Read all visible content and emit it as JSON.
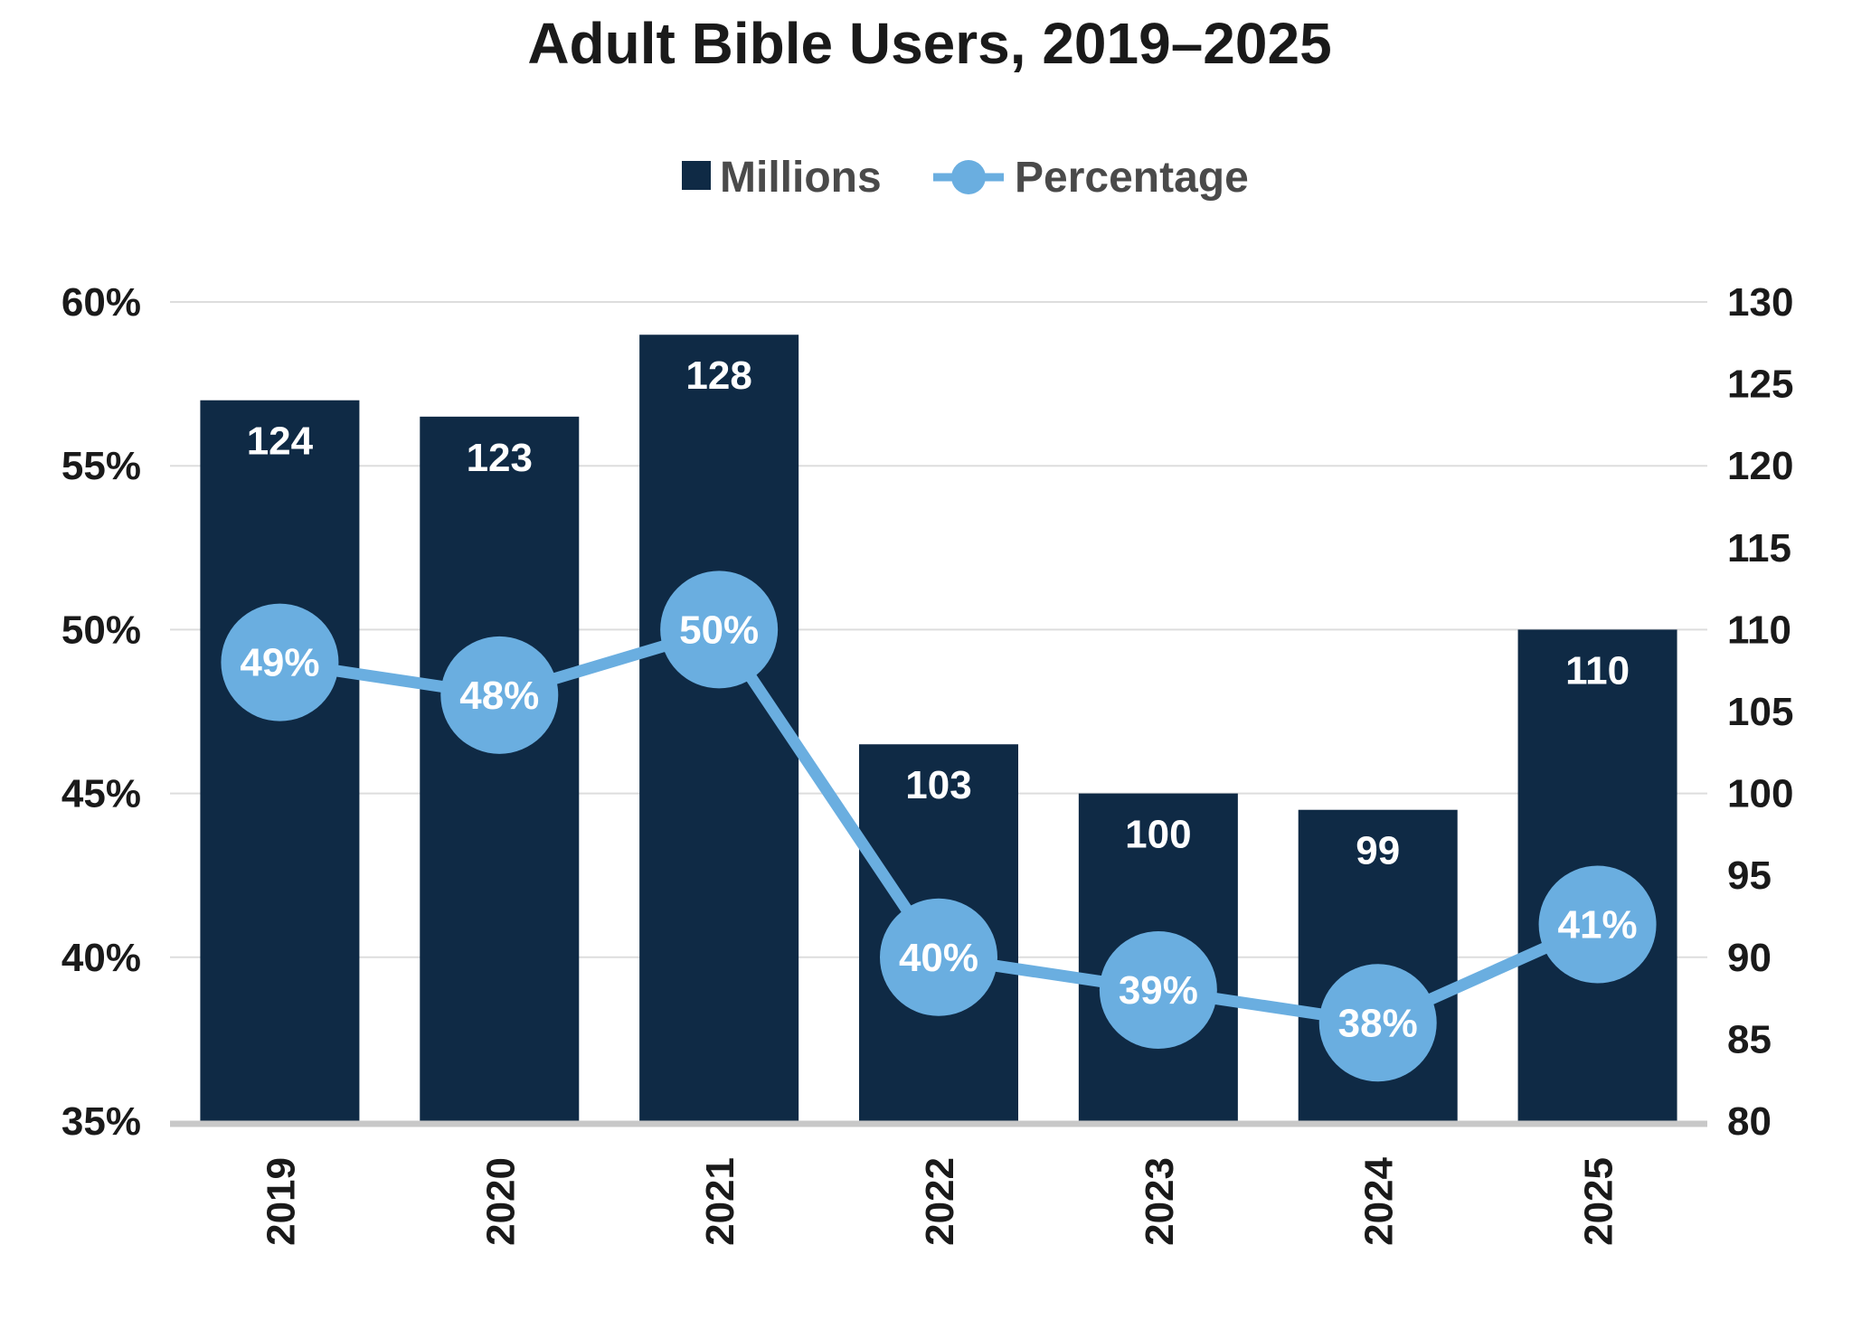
{
  "chart_data": {
    "type": "bar+line",
    "title": "Adult Bible Users, 2019–2025",
    "categories": [
      "2019",
      "2020",
      "2021",
      "2022",
      "2023",
      "2024",
      "2025"
    ],
    "series": [
      {
        "name": "Millions",
        "type": "bar",
        "axis": "right",
        "color": "#0f2a45",
        "values": [
          124,
          123,
          128,
          103,
          100,
          99,
          110
        ],
        "labels": [
          "124",
          "123",
          "128",
          "103",
          "100",
          "99",
          "110"
        ]
      },
      {
        "name": "Percentage",
        "type": "line",
        "axis": "left",
        "color": "#6aaee0",
        "values": [
          49,
          48,
          50,
          40,
          39,
          38,
          41
        ],
        "labels": [
          "49%",
          "48%",
          "50%",
          "40%",
          "39%",
          "38%",
          "41%"
        ]
      }
    ],
    "left_axis": {
      "ylim": [
        35,
        60
      ],
      "ticks": [
        "35%",
        "40%",
        "45%",
        "50%",
        "55%",
        "60%"
      ],
      "tick_values": [
        35,
        40,
        45,
        50,
        55,
        60
      ]
    },
    "right_axis": {
      "ylim": [
        80,
        130
      ],
      "ticks": [
        "80",
        "85",
        "90",
        "95",
        "100",
        "105",
        "110",
        "115",
        "120",
        "125",
        "130"
      ],
      "tick_values": [
        80,
        85,
        90,
        95,
        100,
        105,
        110,
        115,
        120,
        125,
        130
      ]
    },
    "grid": true,
    "legend": "top-center",
    "colors": {
      "gridline": "#dddddd",
      "baseline": "#c8c8c8"
    }
  }
}
